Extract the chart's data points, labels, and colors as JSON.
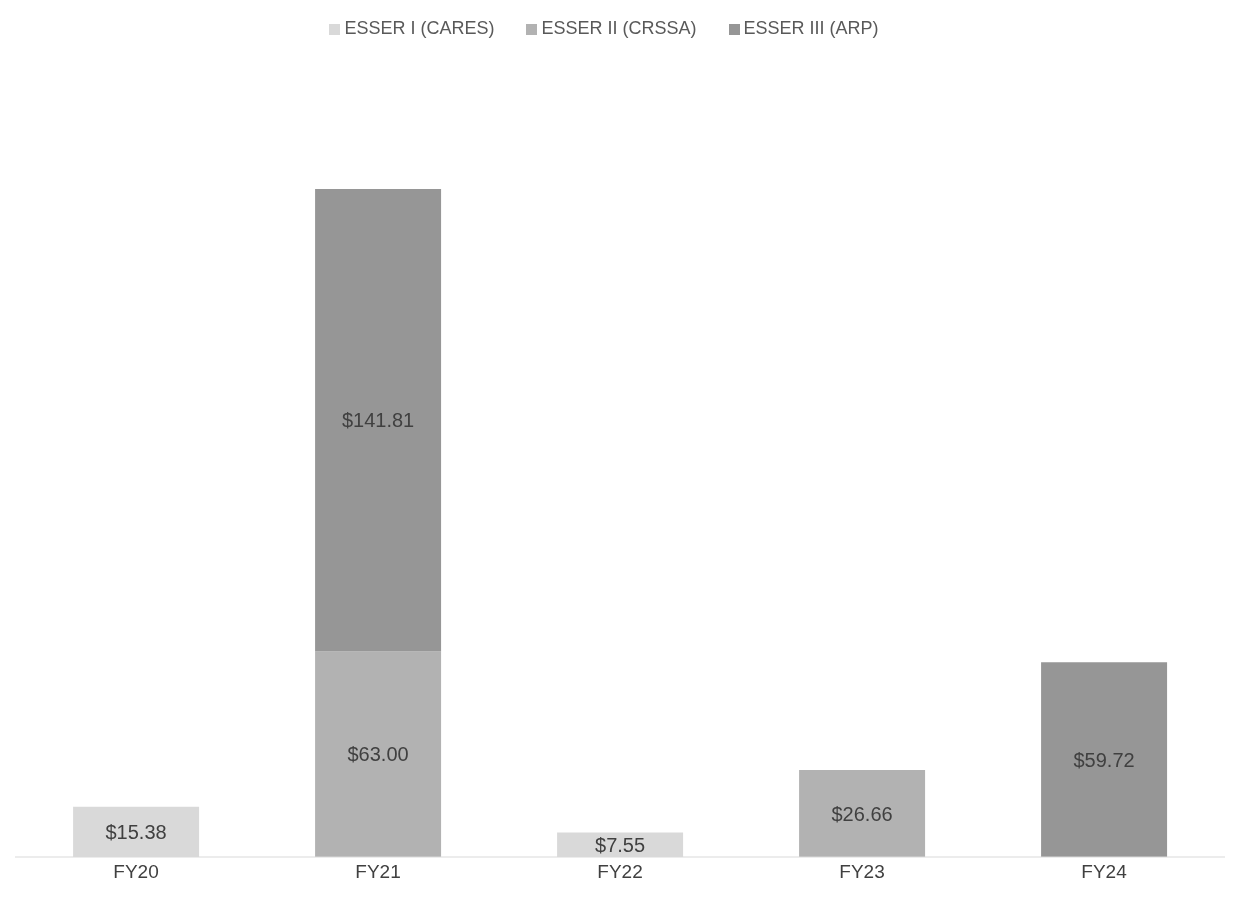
{
  "chart_data": {
    "type": "bar",
    "stacked": true,
    "categories": [
      "FY20",
      "FY21",
      "FY22",
      "FY23",
      "FY24"
    ],
    "series": [
      {
        "name": "ESSER I (CARES)",
        "color": "#d9d9d9",
        "values": [
          15.38,
          null,
          7.55,
          null,
          null
        ],
        "value_labels": [
          "$15.38",
          null,
          "$7.55",
          null,
          null
        ]
      },
      {
        "name": "ESSER II (CRSSA)",
        "color": "#b2b2b2",
        "values": [
          null,
          63.0,
          null,
          26.66,
          null
        ],
        "value_labels": [
          null,
          "$63.00",
          null,
          "$26.66",
          null
        ]
      },
      {
        "name": "ESSER III (ARP)",
        "color": "#969696",
        "values": [
          null,
          141.81,
          null,
          null,
          59.72
        ],
        "value_labels": [
          null,
          "$141.81",
          null,
          null,
          "$59.72"
        ]
      }
    ],
    "legend": "top",
    "grid": false
  }
}
